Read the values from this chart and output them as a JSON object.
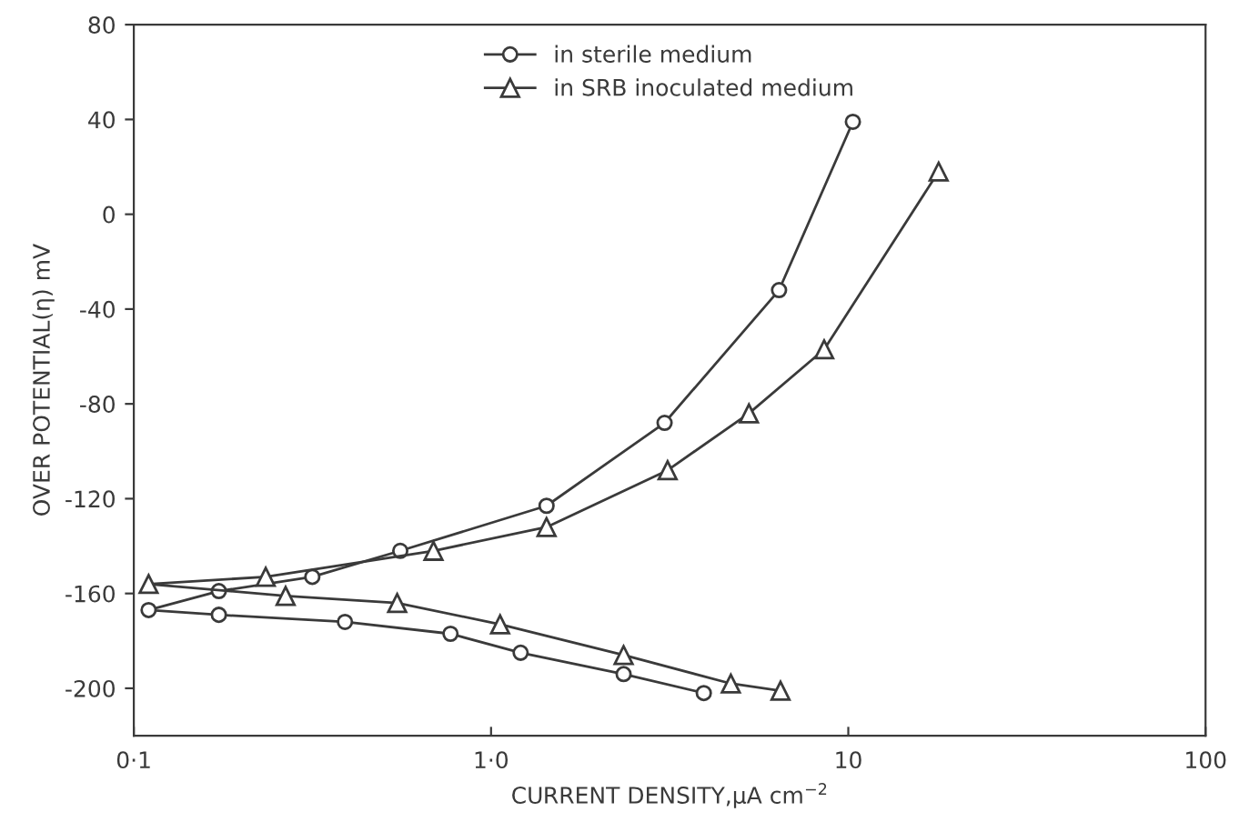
{
  "chart_data": {
    "type": "line",
    "xlabel": "CURRENT DENSITY,μA cm$^{−2}$",
    "ylabel": "OVER POTENTIAL(η) mV",
    "log": "x",
    "xlim": [
      0.1,
      100
    ],
    "xticks": [
      {
        "value": 0.1,
        "label": "0·1"
      },
      {
        "value": 1,
        "label": "1·0"
      },
      10,
      100
    ],
    "ylim": [
      -220,
      80
    ],
    "yticks": [
      80,
      40,
      0,
      -40,
      -80,
      -120,
      -160,
      -200
    ],
    "grid": false,
    "legend": "top",
    "line_style": "solid",
    "series": [
      {
        "name": "in sterile medium",
        "color": "#3a3a3a",
        "marker": "circle",
        "x": [
          3.94,
          2.35,
          1.21,
          0.77,
          0.39,
          0.173,
          0.11,
          0.173,
          0.316,
          0.557,
          1.43,
          3.06,
          6.4,
          10.3
        ],
        "values": [
          -202,
          -194,
          -185,
          -177,
          -172,
          -169,
          -167,
          -159,
          -153,
          -142,
          -123,
          -88,
          -32,
          39
        ]
      },
      {
        "name": "in SRB inoculated medium",
        "color": "#3a3a3a",
        "marker": "triangle",
        "x": [
          6.46,
          4.69,
          2.35,
          1.06,
          0.546,
          0.266,
          0.11,
          0.234,
          0.69,
          1.43,
          3.12,
          5.27,
          8.56,
          17.9
        ],
        "values": [
          -201,
          -198,
          -186,
          -173,
          -164,
          -161,
          -156,
          -153,
          -142,
          -132,
          -108,
          -84,
          -57,
          18
        ]
      }
    ]
  }
}
